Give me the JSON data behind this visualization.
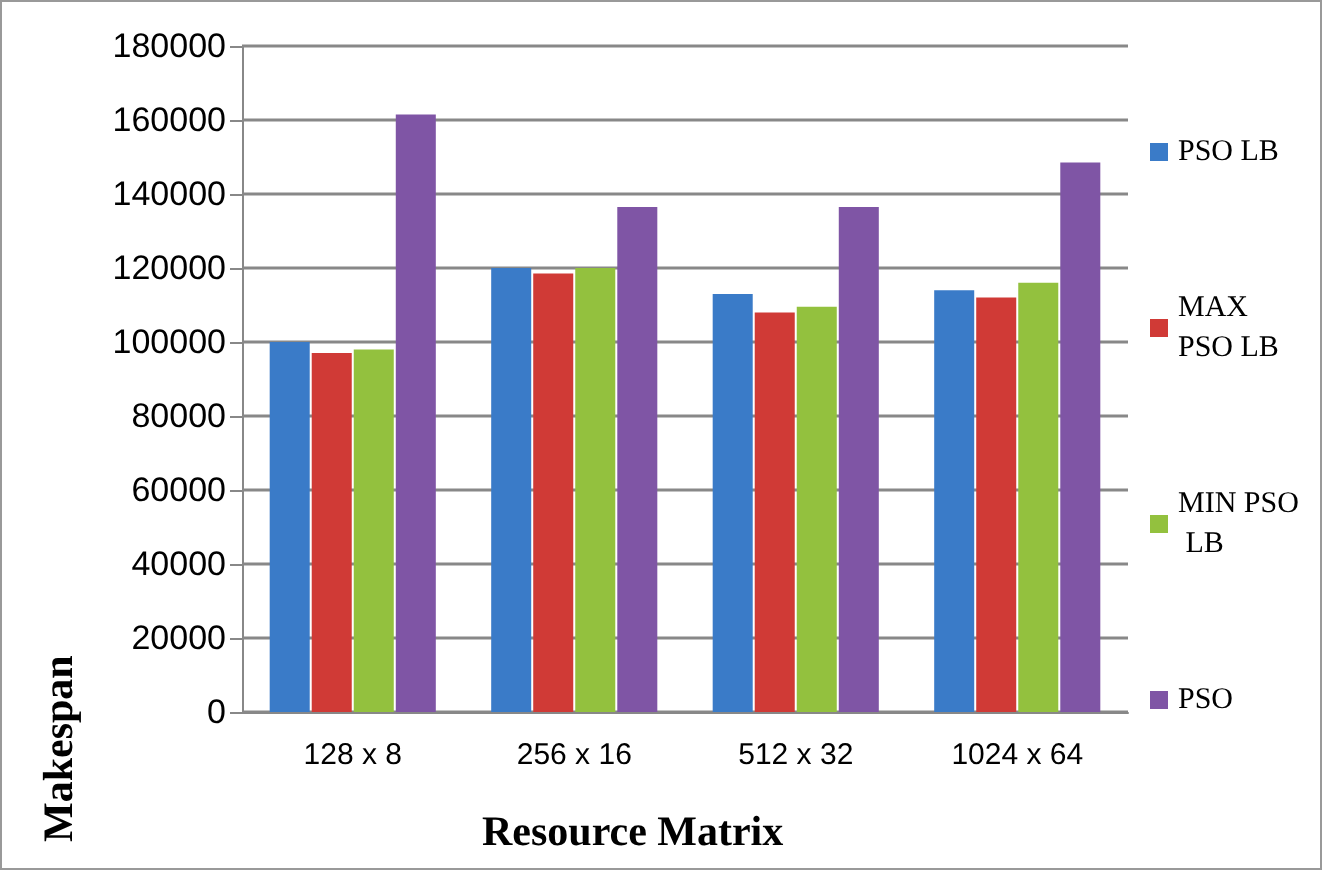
{
  "chart_data": {
    "type": "bar",
    "xlabel": "Resource Matrix",
    "ylabel": "Makespan",
    "categories": [
      "128 x 8",
      "256 x 16",
      "512 x 32",
      "1024 x 64"
    ],
    "series": [
      {
        "name": "PSO LB",
        "color": "#3a7bc8",
        "values": [
          100000,
          120000,
          113000,
          114000
        ]
      },
      {
        "name": "MAX PSO LB",
        "color": "#d03a36",
        "values": [
          97000,
          118500,
          108000,
          112000
        ]
      },
      {
        "name": "MIN PSO LB",
        "color": "#93c13e",
        "values": [
          98000,
          120000,
          109500,
          116000
        ]
      },
      {
        "name": "PSO",
        "color": "#7f55a5",
        "values": [
          161500,
          136500,
          136500,
          148500
        ]
      }
    ],
    "ylim": [
      0,
      180000
    ],
    "yticks": [
      0,
      20000,
      40000,
      60000,
      80000,
      100000,
      120000,
      140000,
      160000,
      180000
    ],
    "grid": "y",
    "legend": "right"
  }
}
